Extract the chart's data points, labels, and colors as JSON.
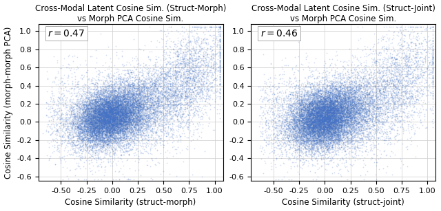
{
  "title1": "Cross-Modal Latent Cosine Sim. (Struct-Morph)\nvs Morph PCA Cosine Sim.",
  "title2": "Cross-Modal Latent Cosine Sim. (Struct-Joint)\nvs Morph PCA Cosine Sim.",
  "xlabel1": "Cosine Similarity (struct-morph)",
  "xlabel2": "Cosine Similarity (struct-joint)",
  "ylabel": "Cosine Similarity (morph-morph PCA)",
  "r1": 0.47,
  "r2": 0.46,
  "xlim": [
    -0.72,
    1.08
  ],
  "ylim": [
    -0.65,
    1.08
  ],
  "xticks": [
    -0.5,
    -0.25,
    0.0,
    0.25,
    0.5,
    0.75,
    1.0
  ],
  "yticks": [
    -0.6,
    -0.4,
    -0.2,
    0.0,
    0.2,
    0.4,
    0.6,
    0.8,
    1.0
  ],
  "dot_color": "#4472C4",
  "dot_alpha": 0.25,
  "dot_size": 1.5,
  "n_points": 20000,
  "seed1": 42,
  "seed2": 99,
  "background_color": "#ffffff",
  "grid_color": "#cccccc",
  "title_fontsize": 8.5,
  "label_fontsize": 8.5,
  "tick_fontsize": 8,
  "annot_fontsize": 10,
  "figwidth": 6.4,
  "figheight": 3.07
}
